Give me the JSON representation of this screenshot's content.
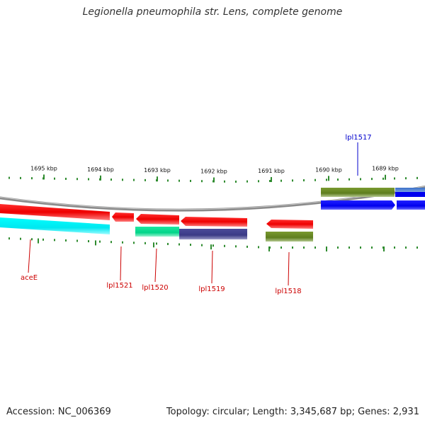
{
  "title": "Legionella pneumophila str. Lens, complete genome",
  "footer": {
    "accession": "Accession: NC_006369",
    "topology": "Topology: circular; Length: 3,345,687 bp; Genes: 2,931"
  },
  "ruler": {
    "labels": [
      "1695 kbp",
      "1694 kbp",
      "1693 kbp",
      "1692 kbp",
      "1691 kbp",
      "1690 kbp",
      "1689 kbp"
    ]
  },
  "gene_labels": [
    "lpl1517",
    "aceE",
    "lpl1521",
    "lpl1520",
    "lpl1519",
    "lpl1518"
  ],
  "colors": {
    "backbone": "#8a8a8a",
    "cds_red": "#ff0000",
    "cds_blue": "#0000ff",
    "olive": "#6b8e23",
    "cyan": "#00ffff",
    "spring_green": "#00e090",
    "slate_blue": "#3f3f8f",
    "tick_green": "#2e8b2e",
    "label_red": "#cc0000",
    "label_blue": "#0000cc"
  }
}
